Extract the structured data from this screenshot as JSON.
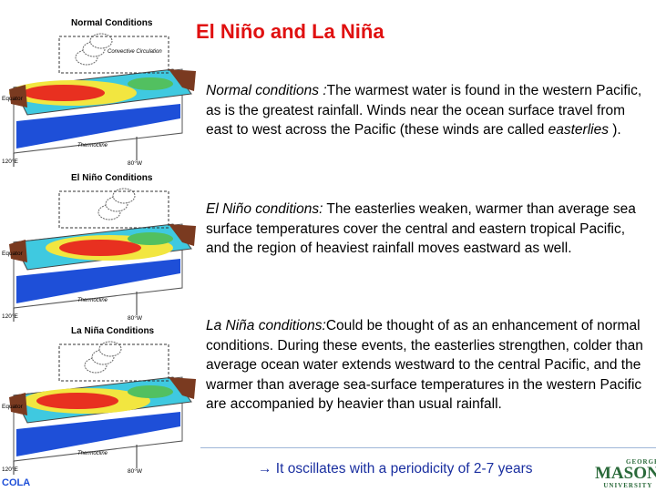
{
  "title": "El Niño and La Niña",
  "paragraphs": [
    {
      "segments": [
        {
          "text": "Normal conditions :",
          "italic": true
        },
        {
          "text": "The warmest water is found in the western Pacific, as is the greatest rainfall. Winds near the ocean surface travel from east to west across the Pacific (these winds are called ",
          "italic": false
        },
        {
          "text": "easterlies",
          "italic": true
        },
        {
          "text": " ).",
          "italic": false
        }
      ]
    },
    {
      "segments": [
        {
          "text": "El Niño conditions:",
          "italic": true
        },
        {
          "text": " The easterlies weaken, warmer than average sea surface temperatures cover the central and eastern tropical Pacific, and the region of heaviest rainfall moves eastward as well.",
          "italic": false
        }
      ]
    },
    {
      "segments": [
        {
          "text": "La Niña conditions:",
          "italic": true
        },
        {
          "text": "Could be thought of as an enhancement of normal conditions. During these events, the easterlies strengthen, colder than average ocean water extends westward to the central Pacific, and the warmer than average sea-surface temperatures in the western Pacific are accompanied by heavier than usual rainfall.",
          "italic": false
        }
      ]
    }
  ],
  "footer": "→ It oscillates with a periodicity of 2-7 years",
  "diagrams": [
    {
      "title": "Normal Conditions",
      "circulation": "Convective Circulation",
      "equator": "Equator",
      "thermocline": "Thermocline",
      "west": "120°E",
      "east": "80°W"
    },
    {
      "title": "El Niño Conditions",
      "equator": "Equator",
      "thermocline": "Thermocline",
      "west": "120°E",
      "east": "80°W"
    },
    {
      "title": "La Niña Conditions",
      "equator": "Equator",
      "thermocline": "Thermocline",
      "west": "120°E",
      "east": "80°W"
    }
  ],
  "left_logo": "COLA",
  "logo": {
    "top": "GEORGE",
    "main": "MASON",
    "bottom": "UNIVERSITY"
  }
}
